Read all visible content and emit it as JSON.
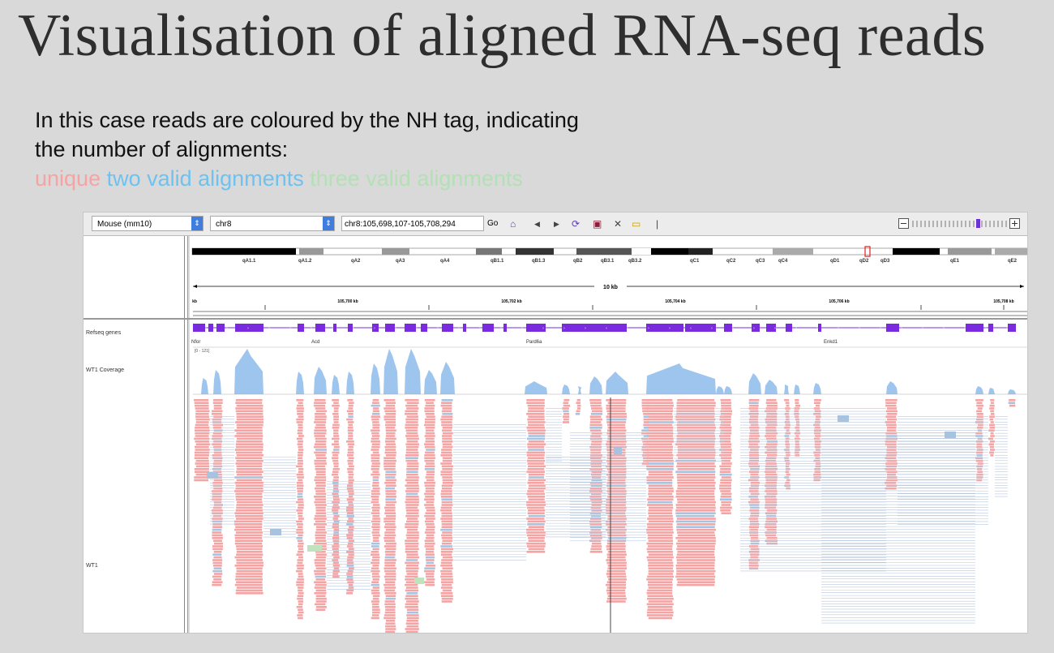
{
  "slide": {
    "title": "Visualisation of aligned RNA-seq reads",
    "description_line1": "In this case reads are coloured by the NH tag, indicating",
    "description_line2": "the number of alignments:",
    "legend": [
      {
        "label": "unique",
        "color": "#f6a3a3"
      },
      {
        "label": "two valid alignments",
        "color": "#6ec2ef"
      },
      {
        "label": "three valid alignments",
        "color": "#b3e0b5"
      }
    ]
  },
  "igv": {
    "genome": "Mouse (mm10)",
    "chromosome": "chr8",
    "locus": "chr8:105,698,107-105,708,294",
    "go_label": "Go",
    "ideogram_bands": [
      "qA1.1",
      "qA1.2",
      "qA2",
      "qA3",
      "qA4",
      "qB1.1",
      "qB1.3",
      "qB2",
      "qB3.1",
      "qB3.2",
      "qC1",
      "qC2",
      "qC3",
      "qC4",
      "qD1",
      "qD2",
      "qD3",
      "qE1",
      "qE2"
    ],
    "scale_label": "10 kb",
    "ruler_ticks": [
      "kb",
      "105,700 kb",
      "105,702 kb",
      "105,704 kb",
      "105,706 kb",
      "105,708 kb"
    ],
    "tracks": {
      "refseq": "Refseq genes",
      "coverage": "WT1 Coverage",
      "alignments": "WT1"
    },
    "gene_names": [
      "Nfor",
      "Acd",
      "Pard6a",
      "Enkd1"
    ],
    "coverage_range": "[0 - 121]",
    "colors": {
      "unique": "#f6a3a3",
      "two": "#a7c3e0",
      "three": "#bfe3bf",
      "coverage": "#9ec5ee",
      "gene": "#7a2be0"
    }
  }
}
